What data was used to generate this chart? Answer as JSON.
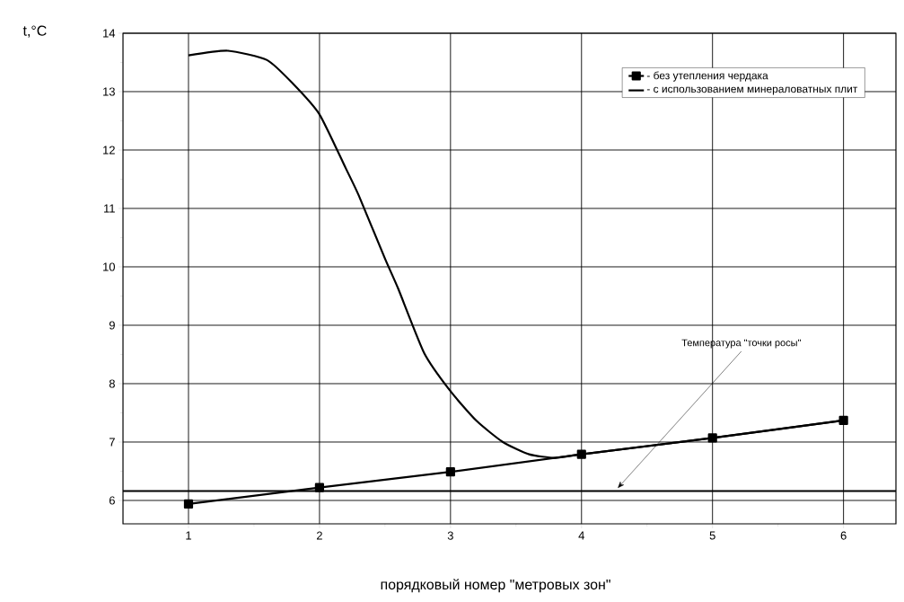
{
  "chart_data": {
    "type": "line",
    "xlabel": "порядковый номер \"метровых зон\"",
    "ylabel": "t,°C",
    "xlim": [
      0.5,
      6.4
    ],
    "ylim": [
      5.6,
      14
    ],
    "xticks": [
      1,
      2,
      3,
      4,
      5,
      6
    ],
    "yticks": [
      6,
      7,
      8,
      9,
      10,
      11,
      12,
      13,
      14
    ],
    "grid": true,
    "legend": "top right",
    "series": [
      {
        "name": "- без утепления чердака",
        "color": "#000000",
        "marker": "square",
        "x": [
          1,
          2,
          3,
          4,
          5,
          6
        ],
        "values": [
          5.94,
          6.22,
          6.49,
          6.79,
          7.07,
          7.37
        ]
      },
      {
        "name": "- с использованием минераловатных плит",
        "color": "#000000",
        "marker": "none",
        "x": [
          1,
          1.3,
          1.6,
          1.8,
          2,
          2.2,
          2.3,
          2.5,
          2.6,
          2.8,
          3,
          3.2,
          3.4,
          3.6,
          3.8,
          4,
          5,
          6
        ],
        "values": [
          13.62,
          13.7,
          13.54,
          13.13,
          12.61,
          11.69,
          11.22,
          10.14,
          9.63,
          8.52,
          7.87,
          7.36,
          7.0,
          6.79,
          6.73,
          6.79,
          7.07,
          7.37
        ]
      }
    ],
    "ref_lines": [
      {
        "axis": "y",
        "value": 6.16,
        "label": "Температура \"точки росы\"",
        "color": "#000000"
      }
    ]
  }
}
